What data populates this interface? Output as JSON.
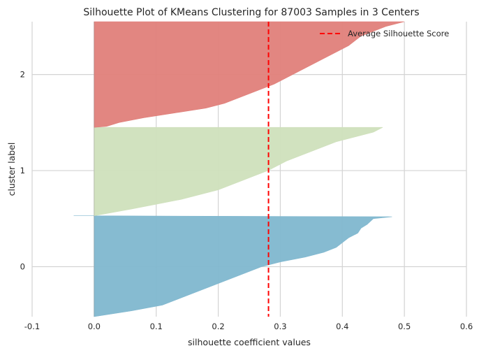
{
  "chart_data": {
    "type": "area",
    "title": "Silhouette Plot of KMeans Clustering for 87003 Samples in 3 Centers",
    "xlabel": "silhouette coefficient values",
    "ylabel": "cluster label",
    "xlim": [
      -0.1,
      0.6
    ],
    "ylim": [
      -0.52,
      2.55
    ],
    "xticks": [
      "-0.1",
      "0.0",
      "0.1",
      "0.2",
      "0.3",
      "0.4",
      "0.5",
      "0.6"
    ],
    "xtick_values": [
      -0.1,
      0.0,
      0.1,
      0.2,
      0.3,
      0.4,
      0.5,
      0.6
    ],
    "yticks": [
      "0",
      "1",
      "2"
    ],
    "ytick_values": [
      0,
      1,
      2
    ],
    "grid": true,
    "legend_position": "top-right",
    "average_silhouette_score": 0.281,
    "average_label": "Average Silhouette Score",
    "average_color": "#ff0000",
    "clusters": [
      {
        "label": "0",
        "color": "#7fb7cf",
        "y_range": [
          -0.52,
          0.53
        ],
        "profile": [
          [
            -0.52,
            0.0
          ],
          [
            -0.5,
            0.02
          ],
          [
            -0.46,
            0.06
          ],
          [
            -0.4,
            0.11
          ],
          [
            -0.3,
            0.15
          ],
          [
            -0.2,
            0.19
          ],
          [
            -0.1,
            0.23
          ],
          [
            0.0,
            0.27
          ],
          [
            0.05,
            0.3
          ],
          [
            0.1,
            0.34
          ],
          [
            0.15,
            0.37
          ],
          [
            0.2,
            0.39
          ],
          [
            0.3,
            0.41
          ],
          [
            0.35,
            0.425
          ],
          [
            0.4,
            0.43
          ],
          [
            0.44,
            0.44
          ],
          [
            0.47,
            0.445
          ],
          [
            0.5,
            0.45
          ],
          [
            0.52,
            0.48
          ],
          [
            0.53,
            -0.033
          ]
        ]
      },
      {
        "label": "1",
        "color": "#cfe0bc",
        "y_range": [
          0.53,
          1.45
        ],
        "profile": [
          [
            0.53,
            0.0
          ],
          [
            0.6,
            0.06
          ],
          [
            0.65,
            0.1
          ],
          [
            0.7,
            0.14
          ],
          [
            0.8,
            0.2
          ],
          [
            0.9,
            0.24
          ],
          [
            1.0,
            0.28
          ],
          [
            1.1,
            0.31
          ],
          [
            1.2,
            0.35
          ],
          [
            1.3,
            0.39
          ],
          [
            1.35,
            0.42
          ],
          [
            1.4,
            0.45
          ],
          [
            1.45,
            0.465
          ]
        ]
      },
      {
        "label": "2",
        "color": "#e07f7a",
        "y_range": [
          1.45,
          2.55
        ],
        "profile": [
          [
            1.45,
            0.0
          ],
          [
            1.46,
            0.02
          ],
          [
            1.5,
            0.04
          ],
          [
            1.55,
            0.08
          ],
          [
            1.6,
            0.13
          ],
          [
            1.65,
            0.18
          ],
          [
            1.7,
            0.21
          ],
          [
            1.75,
            0.23
          ],
          [
            1.8,
            0.25
          ],
          [
            1.9,
            0.29
          ],
          [
            2.0,
            0.32
          ],
          [
            2.1,
            0.35
          ],
          [
            2.2,
            0.38
          ],
          [
            2.3,
            0.41
          ],
          [
            2.4,
            0.43
          ],
          [
            2.45,
            0.45
          ],
          [
            2.5,
            0.47
          ],
          [
            2.55,
            0.5
          ]
        ]
      }
    ]
  }
}
